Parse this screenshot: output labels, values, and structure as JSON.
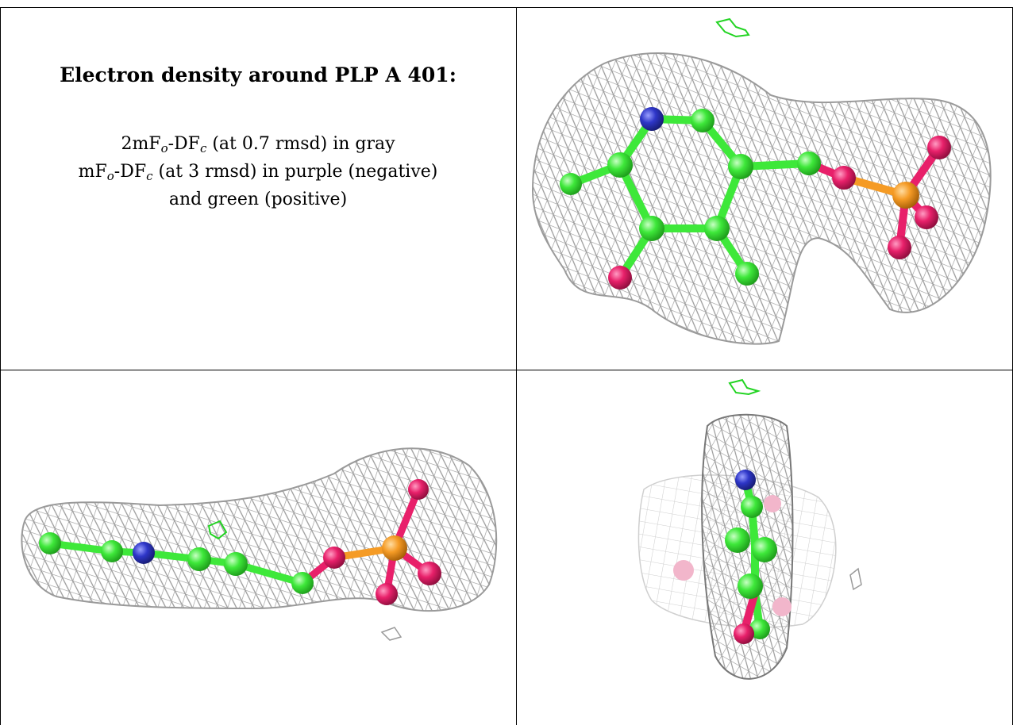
{
  "caption": {
    "title": "Electron density around PLP A 401:",
    "line1": {
      "prefix_a": "2mF",
      "sub_a": "o",
      "mid": "-DF",
      "sub_b": "c",
      "suffix": " (at 0.7 rmsd) in gray"
    },
    "line2": {
      "prefix_a": "mF",
      "sub_a": "o",
      "mid": "-DF",
      "sub_b": "c",
      "suffix": " (at 3 rmsd) in purple (negative)"
    },
    "line3": "and green (positive)"
  },
  "colors": {
    "carbon": "#3ee83a",
    "nitrogen": "#2e36c8",
    "oxygen": "#e8206a",
    "phosphorus": "#f59b25",
    "mesh": "#9a9a9a",
    "positive_density": "#22d422",
    "grid_line": "#000000"
  },
  "panels": {
    "top_right": "PLP density view front",
    "bottom_left": "PLP density view edge",
    "bottom_right": "PLP density view end-on"
  }
}
